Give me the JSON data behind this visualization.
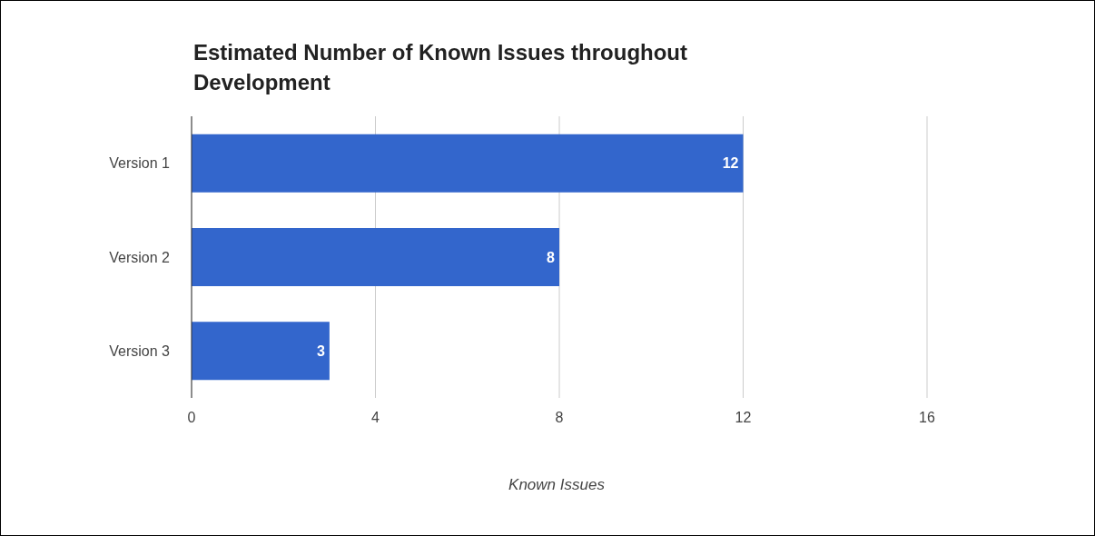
{
  "chart_data": {
    "type": "bar",
    "orientation": "horizontal",
    "title": "Estimated Number of Known Issues throughout Development",
    "categories": [
      "Version 1",
      "Version 2",
      "Version 3"
    ],
    "values": [
      12,
      8,
      3
    ],
    "color": "#3366cc",
    "xlabel": "Known Issues",
    "xlim": [
      0,
      16
    ],
    "xticks": [
      0,
      4,
      8,
      12,
      16
    ],
    "grid": "x",
    "data_labels": true
  }
}
